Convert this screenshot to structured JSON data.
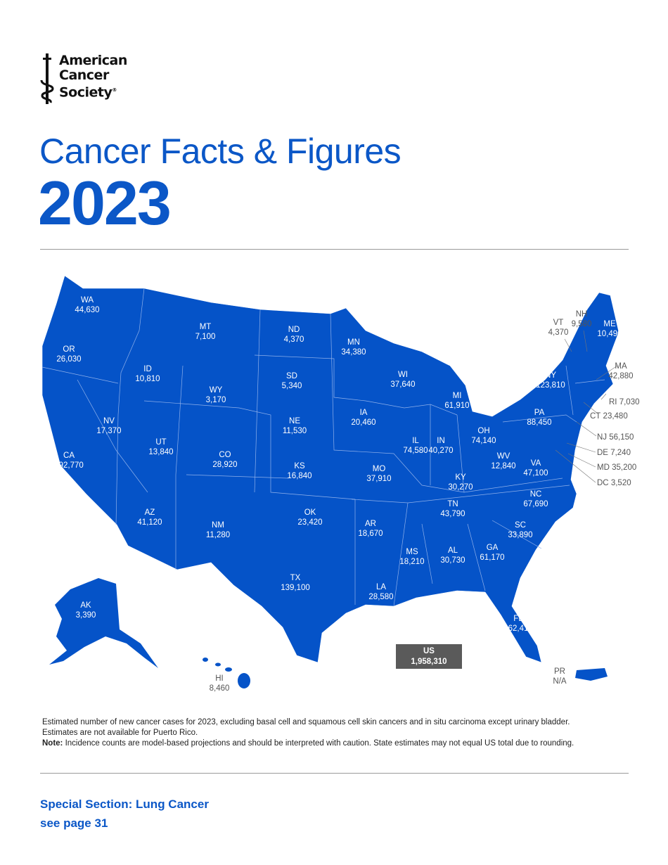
{
  "logo": {
    "lines": [
      "American",
      "Cancer",
      "Society"
    ],
    "mark": "®"
  },
  "header": {
    "title": "Cancer Facts & Figures",
    "year": "2023"
  },
  "colors": {
    "brand_blue": "#0b57c7",
    "map_fill": "#0553c8",
    "total_box": "#5a5a5a"
  },
  "map": {
    "states": [
      {
        "abbr": "WA",
        "value": "44,630"
      },
      {
        "abbr": "OR",
        "value": "26,030"
      },
      {
        "abbr": "CA",
        "value": "192,770"
      },
      {
        "abbr": "NV",
        "value": "17,370"
      },
      {
        "abbr": "ID",
        "value": "10,810"
      },
      {
        "abbr": "MT",
        "value": "7,100"
      },
      {
        "abbr": "WY",
        "value": "3,170"
      },
      {
        "abbr": "UT",
        "value": "13,840"
      },
      {
        "abbr": "AZ",
        "value": "41,120"
      },
      {
        "abbr": "CO",
        "value": "28,920"
      },
      {
        "abbr": "NM",
        "value": "11,280"
      },
      {
        "abbr": "ND",
        "value": "4,370"
      },
      {
        "abbr": "SD",
        "value": "5,340"
      },
      {
        "abbr": "NE",
        "value": "11,530"
      },
      {
        "abbr": "KS",
        "value": "16,840"
      },
      {
        "abbr": "OK",
        "value": "23,420"
      },
      {
        "abbr": "TX",
        "value": "139,100"
      },
      {
        "abbr": "MN",
        "value": "34,380"
      },
      {
        "abbr": "IA",
        "value": "20,460"
      },
      {
        "abbr": "MO",
        "value": "37,910"
      },
      {
        "abbr": "AR",
        "value": "18,670"
      },
      {
        "abbr": "LA",
        "value": "28,580"
      },
      {
        "abbr": "WI",
        "value": "37,640"
      },
      {
        "abbr": "IL",
        "value": "74,580"
      },
      {
        "abbr": "MI",
        "value": "61,910"
      },
      {
        "abbr": "IN",
        "value": "40,270"
      },
      {
        "abbr": "OH",
        "value": "74,140"
      },
      {
        "abbr": "KY",
        "value": "30,270"
      },
      {
        "abbr": "TN",
        "value": "43,790"
      },
      {
        "abbr": "MS",
        "value": "18,210"
      },
      {
        "abbr": "AL",
        "value": "30,730"
      },
      {
        "abbr": "GA",
        "value": "61,170"
      },
      {
        "abbr": "FL",
        "value": "162,410"
      },
      {
        "abbr": "SC",
        "value": "33,890"
      },
      {
        "abbr": "NC",
        "value": "67,690"
      },
      {
        "abbr": "VA",
        "value": "47,100"
      },
      {
        "abbr": "WV",
        "value": "12,840"
      },
      {
        "abbr": "PA",
        "value": "88,450"
      },
      {
        "abbr": "NY",
        "value": "123,810"
      },
      {
        "abbr": "VT",
        "value": "4,370"
      },
      {
        "abbr": "NH",
        "value": "9,580"
      },
      {
        "abbr": "ME",
        "value": "10,490"
      },
      {
        "abbr": "MA",
        "value": "42,880"
      },
      {
        "abbr": "RI",
        "value": "7,030"
      },
      {
        "abbr": "CT",
        "value": "23,480"
      },
      {
        "abbr": "NJ",
        "value": "56,150"
      },
      {
        "abbr": "DE",
        "value": "7,240"
      },
      {
        "abbr": "MD",
        "value": "35,200"
      },
      {
        "abbr": "DC",
        "value": "3,520"
      },
      {
        "abbr": "AK",
        "value": "3,390"
      },
      {
        "abbr": "HI",
        "value": "8,460"
      },
      {
        "abbr": "PR",
        "value": "N/A"
      }
    ],
    "total": {
      "label": "US",
      "value": "1,958,310"
    }
  },
  "notes": {
    "line1": "Estimated number of new cancer cases for 2023, excluding basal cell and squamous cell skin cancers and in situ carcinoma except urinary bladder.",
    "line2": "Estimates are not available for Puerto Rico.",
    "note_label": "Note:",
    "note_text": " Incidence counts are model-based projections and should be interpreted with caution. State estimates may not equal US total due to rounding."
  },
  "special": {
    "line1": "Special Section: Lung Cancer",
    "line2": "see page 31"
  }
}
